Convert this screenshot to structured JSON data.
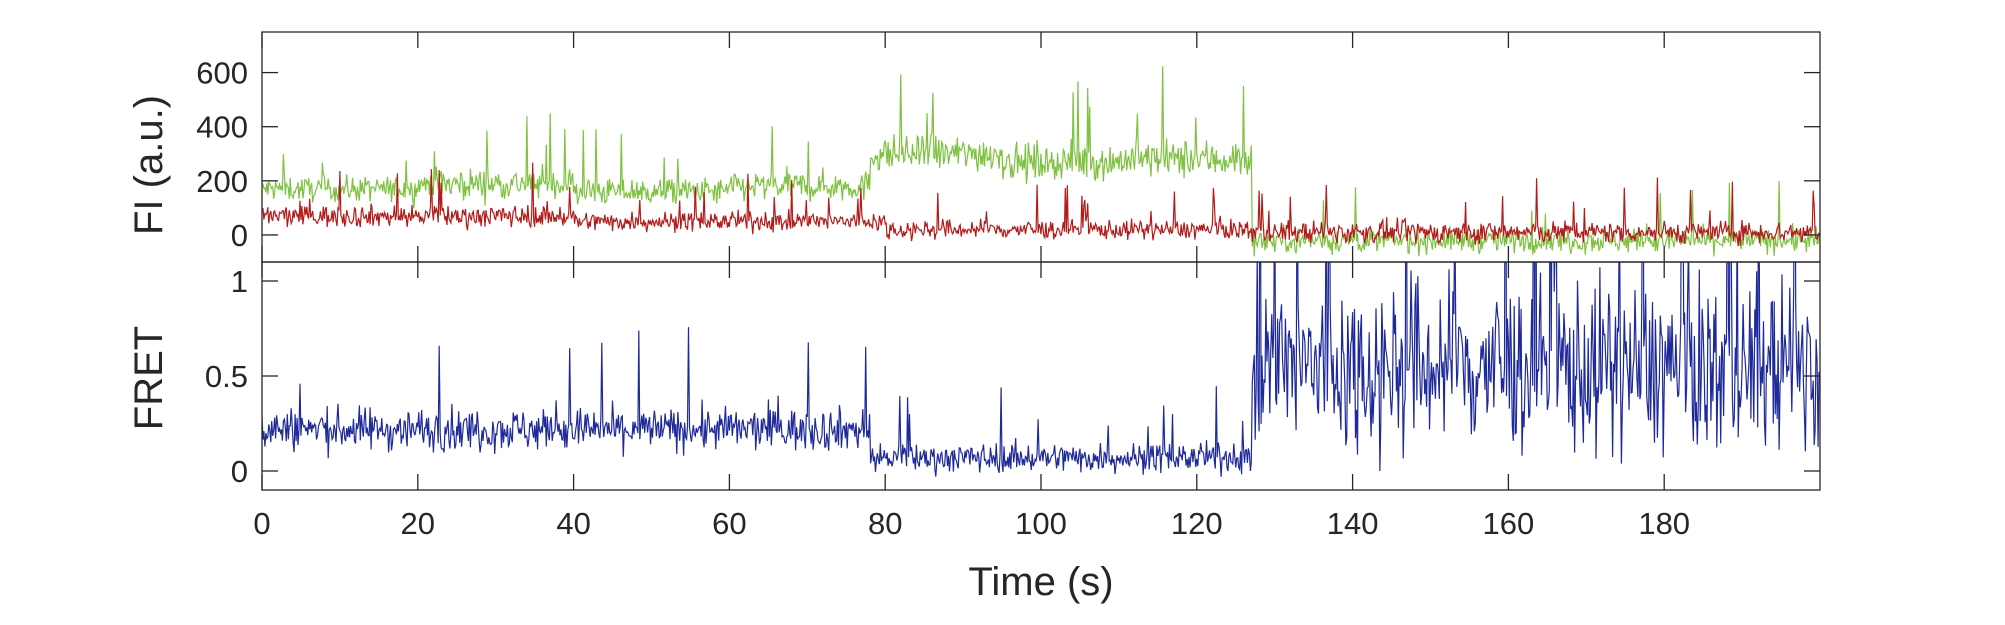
{
  "chart_data": [
    {
      "type": "line",
      "panel": "top",
      "ylabel": "FI (a.u.)",
      "xlabel": "",
      "xlim": [
        0,
        200
      ],
      "ylim": [
        -100,
        750
      ],
      "yticks": [
        0,
        200,
        400,
        600
      ],
      "ytick_labels": [
        "0",
        "200",
        "400",
        "600"
      ],
      "grid": false,
      "legend": "none",
      "series": [
        {
          "color": "#7fc241",
          "note_generation": "dense single-molecule trace; values approximate by segment (start_s, end_s, mean, spread)",
          "segments": [
            [
              0,
              20,
              170,
              90
            ],
            [
              20,
              40,
              190,
              110
            ],
            [
              40,
              60,
              160,
              100
            ],
            [
              60,
              78,
              180,
              110
            ],
            [
              78,
              95,
              300,
              130
            ],
            [
              95,
              110,
              270,
              130
            ],
            [
              110,
              127,
              280,
              140
            ],
            [
              127,
              200,
              -20,
              90
            ]
          ]
        },
        {
          "color": "#b31b1b",
          "segments": [
            [
              0,
              40,
              70,
              80
            ],
            [
              40,
              80,
              50,
              70
            ],
            [
              80,
              127,
              20,
              70
            ],
            [
              127,
              200,
              10,
              80
            ]
          ]
        }
      ]
    },
    {
      "type": "line",
      "panel": "bottom",
      "ylabel": "FRET",
      "xlabel": "Time (s)",
      "xlim": [
        0,
        200
      ],
      "ylim": [
        -0.1,
        1.1
      ],
      "yticks": [
        0,
        0.5,
        1
      ],
      "ytick_labels": [
        "0",
        "0.5",
        "1"
      ],
      "xticks": [
        0,
        20,
        40,
        60,
        80,
        100,
        120,
        140,
        160,
        180
      ],
      "xtick_labels": [
        "0",
        "20",
        "40",
        "60",
        "80",
        "100",
        "120",
        "140",
        "160",
        "180"
      ],
      "grid": false,
      "legend": "none",
      "series": [
        {
          "color": "#1f2a9a",
          "segments": [
            [
              0,
              78,
              0.22,
              0.22
            ],
            [
              78,
              127,
              0.07,
              0.15
            ],
            [
              127,
              200,
              0.55,
              0.9
            ]
          ]
        }
      ]
    }
  ]
}
